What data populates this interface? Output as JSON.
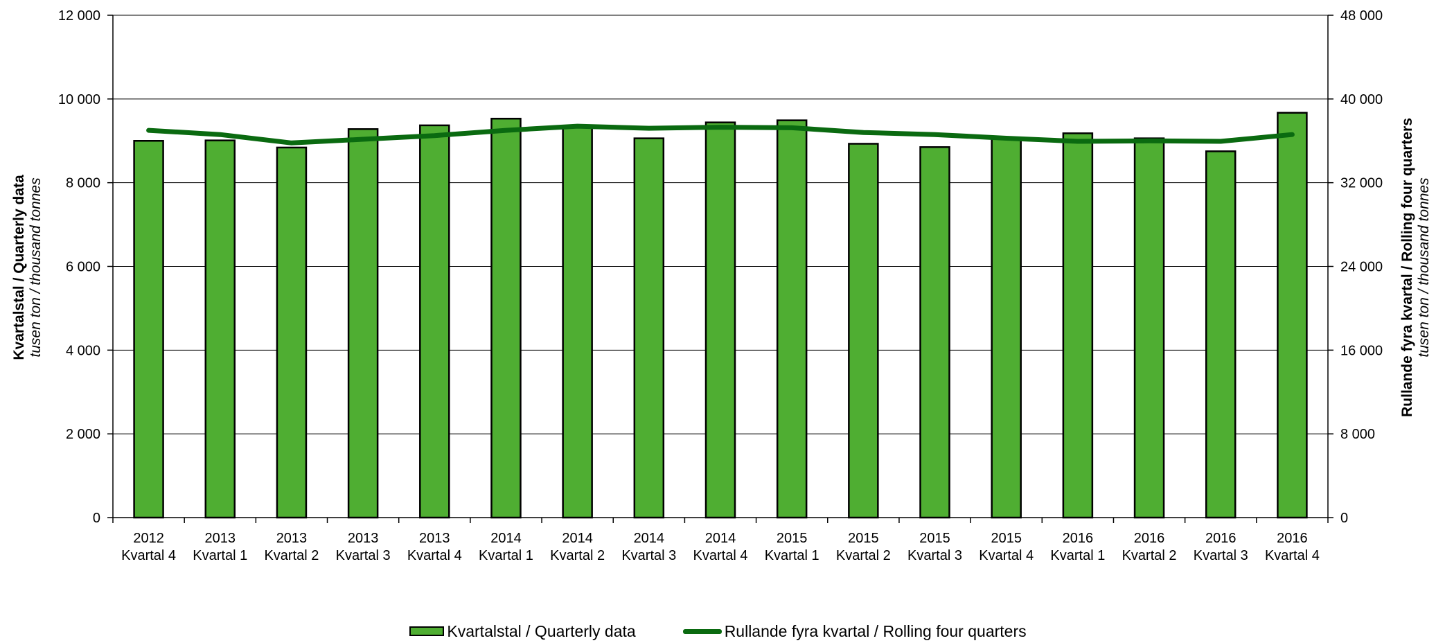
{
  "chart_data": {
    "type": "bar",
    "categories": [
      [
        "2012",
        "Kvartal 4"
      ],
      [
        "2013",
        "Kvartal 1"
      ],
      [
        "2013",
        "Kvartal 2"
      ],
      [
        "2013",
        "Kvartal 3"
      ],
      [
        "2013",
        "Kvartal 4"
      ],
      [
        "2014",
        "Kvartal 1"
      ],
      [
        "2014",
        "Kvartal 2"
      ],
      [
        "2014",
        "Kvartal 3"
      ],
      [
        "2014",
        "Kvartal 4"
      ],
      [
        "2015",
        "Kvartal 1"
      ],
      [
        "2015",
        "Kvartal 2"
      ],
      [
        "2015",
        "Kvartal 3"
      ],
      [
        "2015",
        "Kvartal 4"
      ],
      [
        "2016",
        "Kvartal 1"
      ],
      [
        "2016",
        "Kvartal 2"
      ],
      [
        "2016",
        "Kvartal 3"
      ],
      [
        "2016",
        "Kvartal 4"
      ]
    ],
    "series": [
      {
        "name": "Kvartalstal / Quarterly data",
        "type": "bar",
        "axis": "left",
        "color": "#4fae32",
        "values": [
          9000,
          9010,
          8840,
          9280,
          9370,
          9530,
          9350,
          9060,
          9440,
          9490,
          8930,
          8850,
          9050,
          9180,
          9060,
          8750,
          9670
        ]
      },
      {
        "name": "Rullande fyra kvartal / Rolling four quarters",
        "type": "line",
        "axis": "right",
        "color": "#0a6a10",
        "values": [
          37000,
          36600,
          35800,
          36150,
          36500,
          37000,
          37400,
          37200,
          37300,
          37250,
          36800,
          36600,
          36250,
          35950,
          36000,
          35950,
          36600
        ]
      }
    ],
    "y_left": {
      "title": "Kvartalstal  /  Quarterly data",
      "subtitle": "tusen ton  / thousand tonnes",
      "ylim": [
        0,
        12000
      ],
      "ticks": [
        "0",
        "2 000",
        "4 000",
        "6 000",
        "8 000",
        "10 000",
        "12 000"
      ]
    },
    "y_right": {
      "title": "Rullande fyra kvartal  /  Rolling four quarters",
      "subtitle": "tusen ton  / thousand tonnes",
      "ylim": [
        0,
        48000
      ],
      "ticks": [
        "0",
        "8 000",
        "16 000",
        "24 000",
        "32 000",
        "40 000",
        "48 000"
      ]
    },
    "grid": true,
    "legend_position": "bottom"
  },
  "legend": {
    "bar_label": "Kvartalstal / Quarterly data",
    "line_label": "Rullande fyra kvartal / Rolling four quarters"
  }
}
